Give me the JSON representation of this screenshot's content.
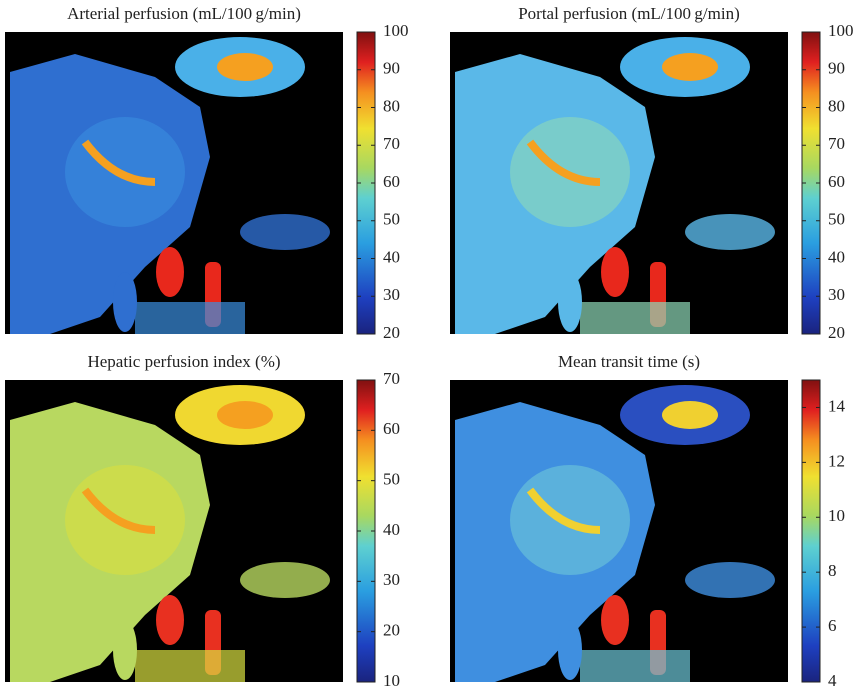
{
  "panels": [
    {
      "title": "Arterial perfusion (mL/100 g/min)",
      "colorbar": {
        "lim": [
          20,
          100
        ],
        "ticks": [
          20,
          30,
          40,
          50,
          60,
          70,
          80,
          90,
          100
        ]
      }
    },
    {
      "title": "Portal perfusion (mL/100 g/min)",
      "colorbar": {
        "lim": [
          20,
          100
        ],
        "ticks": [
          20,
          30,
          40,
          50,
          60,
          70,
          80,
          90,
          100
        ]
      }
    },
    {
      "title": "Hepatic perfusion index (%)",
      "colorbar": {
        "lim": [
          10,
          70
        ],
        "ticks": [
          10,
          20,
          30,
          40,
          50,
          60,
          70
        ]
      }
    },
    {
      "title": "Mean transit time (s)",
      "colorbar": {
        "lim": [
          4,
          15
        ],
        "ticks": [
          4,
          6,
          8,
          10,
          12,
          14
        ]
      }
    }
  ]
}
